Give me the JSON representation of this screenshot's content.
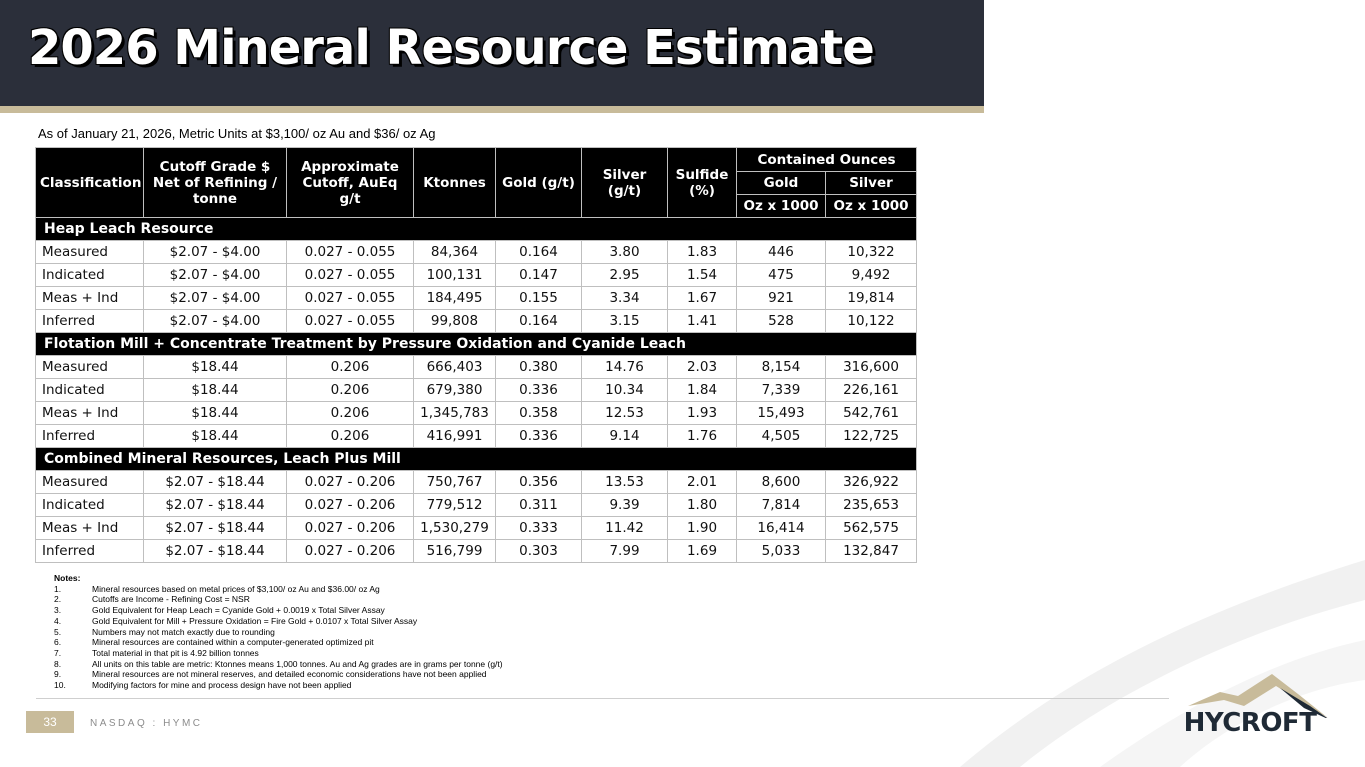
{
  "header": {
    "title": "2026 Mineral Resource Estimate",
    "subtitle": "As of January 21, 2026, Metric Units at $3,100/ oz Au and $36/ oz Ag"
  },
  "table": {
    "headers": {
      "classification": "Classification",
      "cutoff_grade": "Cutoff Grade $ Net of Refining / tonne",
      "approx_cutoff": "Approximate Cutoff, AuEq g/t",
      "ktonnes": "Ktonnes",
      "gold": "Gold (g/t)",
      "silver": "Silver (g/t)",
      "sulfide": "Sulfide (%)",
      "contained_ounces": "Contained Ounces",
      "contained_gold": "Gold",
      "contained_silver": "Silver",
      "gold_unit": "Oz x 1000",
      "silver_unit": "Oz x 1000"
    },
    "sections": [
      {
        "title": "Heap Leach Resource",
        "rows": [
          {
            "cls": "Measured",
            "cutoff": "$2.07 - $4.00",
            "approx": "0.027 - 0.055",
            "kt": "84,364",
            "au": "0.164",
            "ag": "3.80",
            "sulf": "1.83",
            "au_oz": "446",
            "ag_oz": "10,322"
          },
          {
            "cls": "Indicated",
            "cutoff": "$2.07 - $4.00",
            "approx": "0.027 - 0.055",
            "kt": "100,131",
            "au": "0.147",
            "ag": "2.95",
            "sulf": "1.54",
            "au_oz": "475",
            "ag_oz": "9,492"
          },
          {
            "cls": "Meas + Ind",
            "cutoff": "$2.07 - $4.00",
            "approx": "0.027 - 0.055",
            "kt": "184,495",
            "au": "0.155",
            "ag": "3.34",
            "sulf": "1.67",
            "au_oz": "921",
            "ag_oz": "19,814"
          },
          {
            "cls": "Inferred",
            "cutoff": "$2.07 - $4.00",
            "approx": "0.027 - 0.055",
            "kt": "99,808",
            "au": "0.164",
            "ag": "3.15",
            "sulf": "1.41",
            "au_oz": "528",
            "ag_oz": "10,122"
          }
        ]
      },
      {
        "title": "Flotation Mill + Concentrate Treatment by Pressure Oxidation and Cyanide Leach",
        "rows": [
          {
            "cls": "Measured",
            "cutoff": "$18.44",
            "approx": "0.206",
            "kt": "666,403",
            "au": "0.380",
            "ag": "14.76",
            "sulf": "2.03",
            "au_oz": "8,154",
            "ag_oz": "316,600"
          },
          {
            "cls": "Indicated",
            "cutoff": "$18.44",
            "approx": "0.206",
            "kt": "679,380",
            "au": "0.336",
            "ag": "10.34",
            "sulf": "1.84",
            "au_oz": "7,339",
            "ag_oz": "226,161"
          },
          {
            "cls": "Meas + Ind",
            "cutoff": "$18.44",
            "approx": "0.206",
            "kt": "1,345,783",
            "au": "0.358",
            "ag": "12.53",
            "sulf": "1.93",
            "au_oz": "15,493",
            "ag_oz": "542,761"
          },
          {
            "cls": "Inferred",
            "cutoff": "$18.44",
            "approx": "0.206",
            "kt": "416,991",
            "au": "0.336",
            "ag": "9.14",
            "sulf": "1.76",
            "au_oz": "4,505",
            "ag_oz": "122,725"
          }
        ]
      },
      {
        "title": "Combined Mineral Resources, Leach Plus Mill",
        "rows": [
          {
            "cls": "Measured",
            "cutoff": "$2.07 - $18.44",
            "approx": "0.027 - 0.206",
            "kt": "750,767",
            "au": "0.356",
            "ag": "13.53",
            "sulf": "2.01",
            "au_oz": "8,600",
            "ag_oz": "326,922"
          },
          {
            "cls": "Indicated",
            "cutoff": "$2.07 - $18.44",
            "approx": "0.027 - 0.206",
            "kt": "779,512",
            "au": "0.311",
            "ag": "9.39",
            "sulf": "1.80",
            "au_oz": "7,814",
            "ag_oz": "235,653"
          },
          {
            "cls": "Meas + Ind",
            "cutoff": "$2.07 - $18.44",
            "approx": "0.027 - 0.206",
            "kt": "1,530,279",
            "au": "0.333",
            "ag": "11.42",
            "sulf": "1.90",
            "au_oz": "16,414",
            "ag_oz": "562,575"
          },
          {
            "cls": "Inferred",
            "cutoff": "$2.07 - $18.44",
            "approx": "0.027 - 0.206",
            "kt": "516,799",
            "au": "0.303",
            "ag": "7.99",
            "sulf": "1.69",
            "au_oz": "5,033",
            "ag_oz": "132,847"
          }
        ]
      }
    ]
  },
  "notes": {
    "title": "Notes:",
    "items": [
      {
        "num": "1.",
        "text": "Mineral resources based on metal prices of $3,100/ oz Au and $36.00/ oz Ag"
      },
      {
        "num": "2.",
        "text": "Cutoffs are Income - Refining Cost = NSR"
      },
      {
        "num": "3.",
        "text": "Gold Equivalent for Heap Leach = Cyanide Gold + 0.0019 x Total Silver Assay"
      },
      {
        "num": "4.",
        "text": "Gold Equivalent for Mill + Pressure Oxidation = Fire Gold + 0.0107 x Total Silver Assay"
      },
      {
        "num": "5.",
        "text": "Numbers may not match exactly due to rounding"
      },
      {
        "num": "6.",
        "text": "Mineral resources are contained within a computer-generated optimized pit"
      },
      {
        "num": "7.",
        "text": "Total material in that pit is 4.92 billion tonnes"
      },
      {
        "num": "8.",
        "text": "All units on this table are metric: Ktonnes means 1,000 tonnes. Au and Ag grades are in grams per tonne (g/t)"
      },
      {
        "num": "9.",
        "text": "Mineral resources are not mineral reserves, and detailed economic considerations have not been applied"
      },
      {
        "num": "10.",
        "text": "Modifying factors for mine and process design have not been applied"
      }
    ]
  },
  "footer": {
    "page_number": "33",
    "ticker": "NASDAQ : HYMC",
    "logo_text": "HYCROFT"
  },
  "colors": {
    "header_bg": "#2b2f3a",
    "accent_gold": "#c8bb9a",
    "logo_navy": "#1f2a36"
  }
}
